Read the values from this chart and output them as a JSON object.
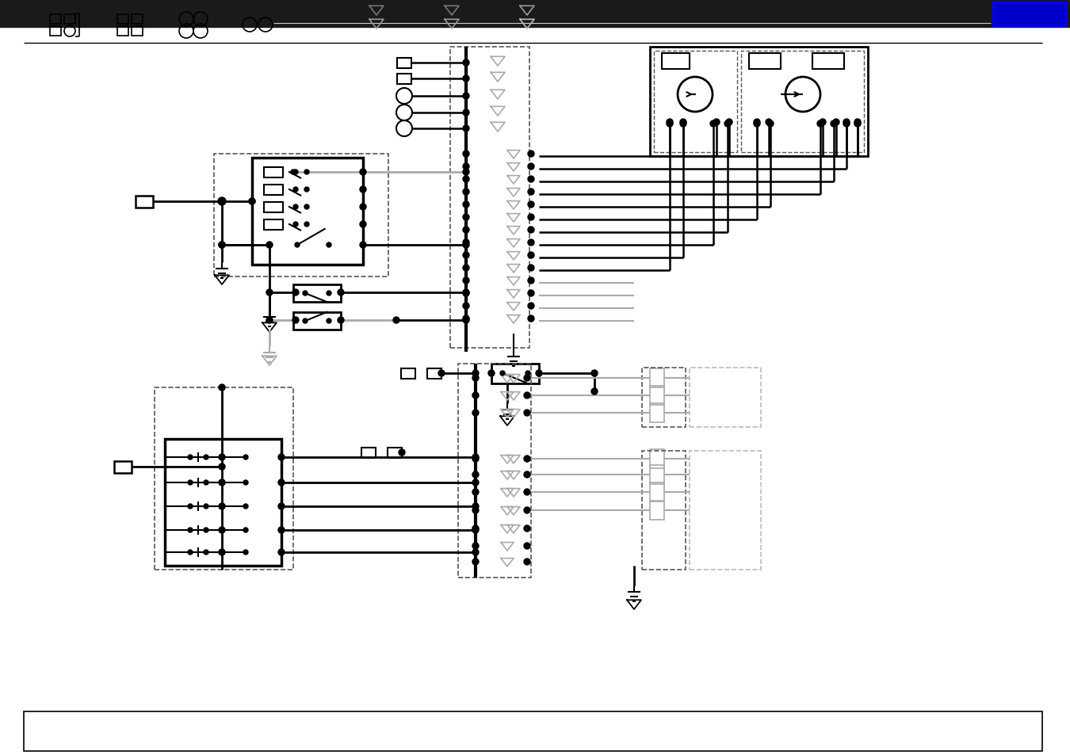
{
  "header_bg": "#1a1a1a",
  "header_blue": "#0000cc",
  "bg_color": "#ffffff",
  "lc": "#000000",
  "gc": "#aaaaaa",
  "dc": "#555555"
}
